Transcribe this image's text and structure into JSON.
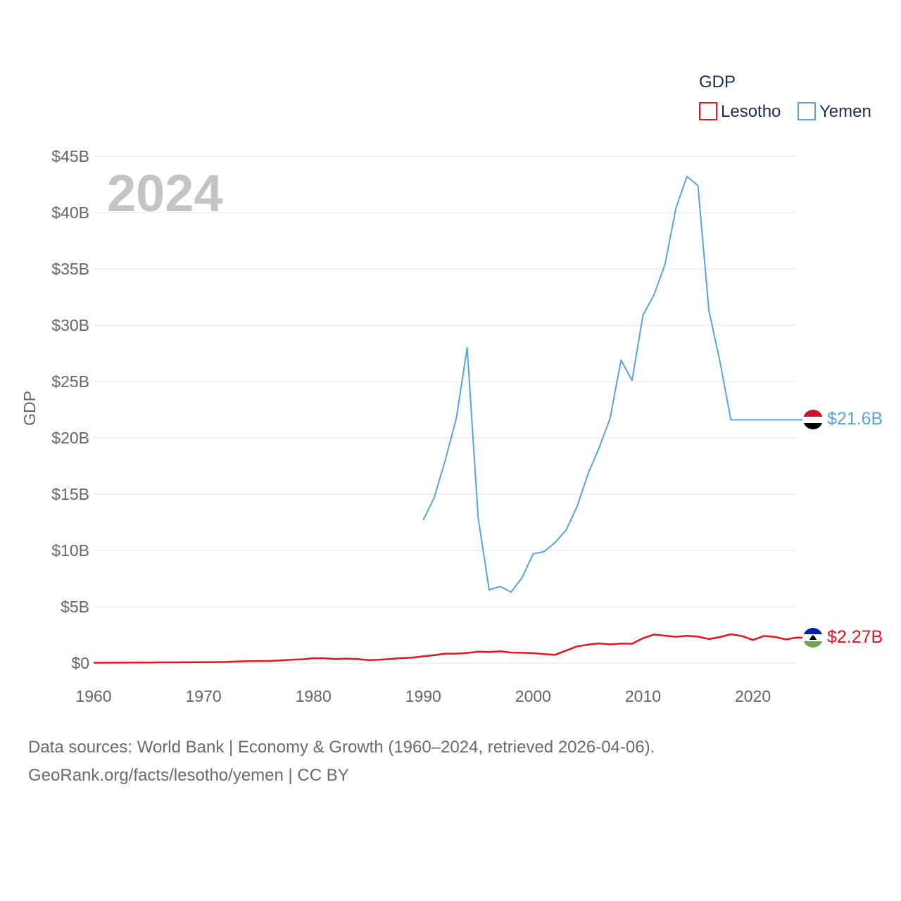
{
  "chart_data": {
    "type": "line",
    "title": "GDP",
    "year_label": "2024",
    "ylabel": "GDP",
    "xlim": [
      1960,
      2024
    ],
    "ylim": [
      0,
      45
    ],
    "y_unit": "billions USD",
    "x_ticks": [
      "1960",
      "1970",
      "1980",
      "1990",
      "2000",
      "2010",
      "2020"
    ],
    "y_ticks": [
      {
        "value": 0,
        "label": "$0"
      },
      {
        "value": 5,
        "label": "$5B"
      },
      {
        "value": 10,
        "label": "$10B"
      },
      {
        "value": 15,
        "label": "$15B"
      },
      {
        "value": 20,
        "label": "$20B"
      },
      {
        "value": 25,
        "label": "$25B"
      },
      {
        "value": 30,
        "label": "$30B"
      },
      {
        "value": 35,
        "label": "$35B"
      },
      {
        "value": 40,
        "label": "$40B"
      },
      {
        "value": 45,
        "label": "$45B"
      }
    ],
    "legend": {
      "title": "GDP",
      "placement": "top-right"
    },
    "series": [
      {
        "name": "Lesotho",
        "color": "#e8141c",
        "end_label": "$2.27B",
        "flag": "lesotho-flag",
        "x": [
          1960,
          1961,
          1962,
          1963,
          1964,
          1965,
          1966,
          1967,
          1968,
          1969,
          1970,
          1971,
          1972,
          1973,
          1974,
          1975,
          1976,
          1977,
          1978,
          1979,
          1980,
          1981,
          1982,
          1983,
          1984,
          1985,
          1986,
          1987,
          1988,
          1989,
          1990,
          1991,
          1992,
          1993,
          1994,
          1995,
          1996,
          1997,
          1998,
          1999,
          2000,
          2001,
          2002,
          2003,
          2004,
          2005,
          2006,
          2007,
          2008,
          2009,
          2010,
          2011,
          2012,
          2013,
          2014,
          2015,
          2016,
          2017,
          2018,
          2019,
          2020,
          2021,
          2022,
          2023,
          2024
        ],
        "values": [
          0.03,
          0.03,
          0.04,
          0.04,
          0.05,
          0.05,
          0.06,
          0.06,
          0.07,
          0.08,
          0.08,
          0.09,
          0.1,
          0.14,
          0.17,
          0.18,
          0.19,
          0.24,
          0.3,
          0.34,
          0.43,
          0.43,
          0.36,
          0.4,
          0.36,
          0.27,
          0.3,
          0.37,
          0.44,
          0.48,
          0.6,
          0.7,
          0.84,
          0.84,
          0.9,
          1.02,
          0.99,
          1.05,
          0.93,
          0.91,
          0.88,
          0.8,
          0.74,
          1.11,
          1.48,
          1.64,
          1.75,
          1.66,
          1.74,
          1.72,
          2.21,
          2.54,
          2.43,
          2.34,
          2.42,
          2.35,
          2.13,
          2.31,
          2.56,
          2.4,
          2.05,
          2.41,
          2.32,
          2.1,
          2.27
        ]
      },
      {
        "name": "Yemen",
        "color": "#5ba3e0",
        "end_label": "$21.6B",
        "flag": "yemen-flag",
        "x": [
          1990,
          1991,
          1992,
          1993,
          1994,
          1995,
          1996,
          1997,
          1998,
          1999,
          2000,
          2001,
          2002,
          2003,
          2004,
          2005,
          2006,
          2007,
          2008,
          2009,
          2010,
          2011,
          2012,
          2013,
          2014,
          2015,
          2016,
          2017,
          2018,
          2019,
          2020,
          2021,
          2022,
          2023,
          2024
        ],
        "values": [
          12.7,
          14.7,
          18.0,
          21.7,
          28.0,
          12.9,
          6.5,
          6.8,
          6.3,
          7.6,
          9.7,
          9.9,
          10.7,
          11.8,
          13.9,
          16.8,
          19.1,
          21.7,
          26.9,
          25.1,
          30.9,
          32.7,
          35.4,
          40.4,
          43.2,
          42.4,
          31.3,
          26.8,
          21.6,
          21.6,
          21.6,
          21.6,
          21.6,
          21.6,
          21.6
        ]
      }
    ]
  },
  "footer": {
    "line1": "Data sources: World Bank | Economy & Growth (1960–2024, retrieved 2026-04-06).",
    "line2": "GeoRank.org/facts/lesotho/yemen | CC BY"
  }
}
